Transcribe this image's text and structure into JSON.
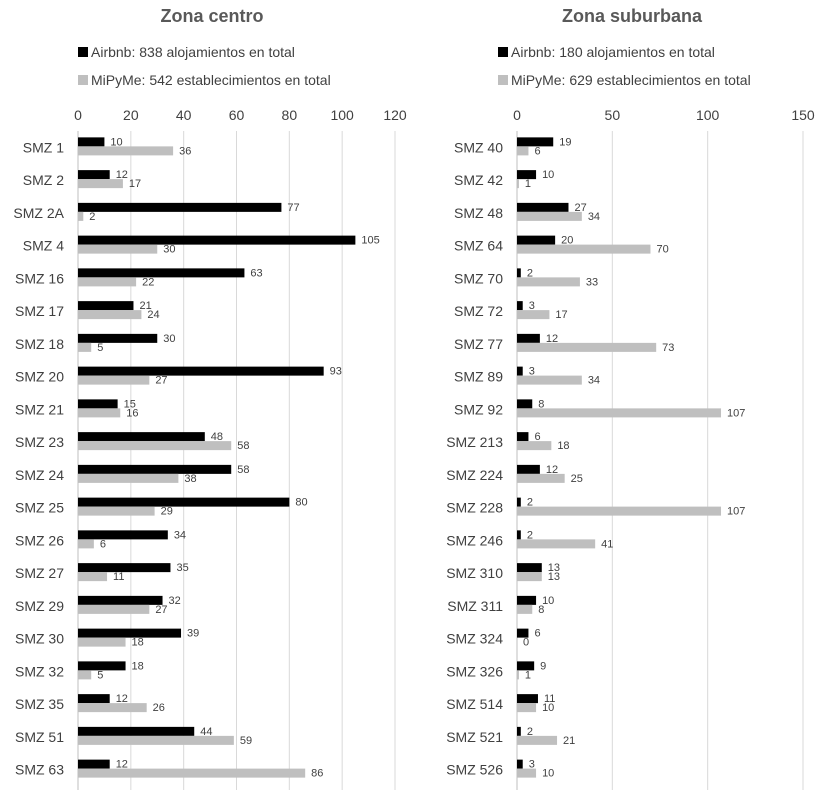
{
  "chart_data": [
    {
      "type": "bar",
      "orientation": "horizontal",
      "title": "Zona centro",
      "categories": [
        "SMZ 1",
        "SMZ 2",
        "SMZ 2A",
        "SMZ 4",
        "SMZ 16",
        "SMZ 17",
        "SMZ 18",
        "SMZ 20",
        "SMZ 21",
        "SMZ 23",
        "SMZ 24",
        "SMZ 25",
        "SMZ 26",
        "SMZ 27",
        "SMZ 29",
        "SMZ 30",
        "SMZ 32",
        "SMZ 35",
        "SMZ 51",
        "SMZ 63"
      ],
      "series": [
        {
          "name": "Airbnb: 838 alojamientos en total",
          "color": "#000000",
          "values": [
            10,
            12,
            77,
            105,
            63,
            21,
            30,
            93,
            15,
            48,
            58,
            80,
            34,
            35,
            32,
            39,
            18,
            12,
            44,
            12
          ]
        },
        {
          "name": "MiPyMe: 542 establecimientos en total",
          "color": "#bfbfbf",
          "values": [
            36,
            17,
            2,
            30,
            22,
            24,
            5,
            27,
            16,
            58,
            38,
            29,
            6,
            11,
            27,
            18,
            5,
            26,
            59,
            86
          ]
        }
      ],
      "xlim": [
        0,
        120
      ],
      "xticks": [
        "0",
        "20",
        "40",
        "60",
        "80",
        "100",
        "120"
      ],
      "axis_position": "top",
      "grid": true,
      "legend_position": "top"
    },
    {
      "type": "bar",
      "orientation": "horizontal",
      "title": "Zona suburbana",
      "categories": [
        "SMZ 40",
        "SMZ 42",
        "SMZ 48",
        "SMZ 64",
        "SMZ 70",
        "SMZ 72",
        "SMZ 77",
        "SMZ 89",
        "SMZ 92",
        "SMZ 213",
        "SMZ 224",
        "SMZ 228",
        "SMZ 246",
        "SMZ 310",
        "SMZ 311",
        "SMZ 324",
        "SMZ 326",
        "SMZ 514",
        "SMZ 521",
        "SMZ 526"
      ],
      "series": [
        {
          "name": "Airbnb: 180 alojamientos en total",
          "color": "#000000",
          "values": [
            19,
            10,
            27,
            20,
            2,
            3,
            12,
            3,
            8,
            6,
            12,
            2,
            2,
            13,
            10,
            6,
            9,
            11,
            2,
            3
          ]
        },
        {
          "name": "MiPyMe: 629 establecimientos en total",
          "color": "#bfbfbf",
          "values": [
            6,
            1,
            34,
            70,
            33,
            17,
            73,
            34,
            107,
            18,
            25,
            107,
            41,
            13,
            8,
            0,
            1,
            10,
            21,
            10
          ]
        }
      ],
      "xlim": [
        0,
        150
      ],
      "xticks": [
        "0",
        "50",
        "100",
        "150"
      ],
      "axis_position": "top",
      "grid": true,
      "legend_position": "top"
    }
  ]
}
